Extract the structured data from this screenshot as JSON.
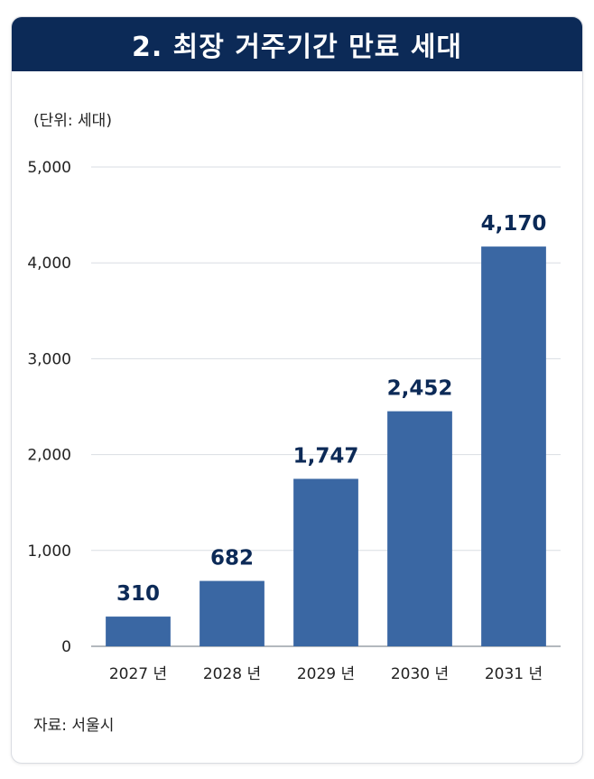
{
  "header": {
    "title": "2. 최장 거주기간 만료 세대"
  },
  "unit_label": "(단위: 세대)",
  "source_label": "자료: 서울시",
  "colors": {
    "bar": "#3a67a3",
    "title_bg": "#0c2a57",
    "label": "#0c2a57"
  },
  "chart_data": {
    "type": "bar",
    "title": "2. 최장 거주기간 만료 세대",
    "xlabel": "",
    "ylabel": "(단위: 세대)",
    "categories": [
      "2027 년",
      "2028 년",
      "2029 년",
      "2030 년",
      "2031 년"
    ],
    "values": [
      310,
      682,
      1747,
      2452,
      4170
    ],
    "value_labels": [
      "310",
      "682",
      "1,747",
      "2,452",
      "4,170"
    ],
    "y_ticks": [
      0,
      1000,
      2000,
      3000,
      4000,
      5000
    ],
    "y_tick_labels": [
      "0",
      "1,000",
      "2,000",
      "3,000",
      "4,000",
      "5,000"
    ],
    "ylim": [
      0,
      5000
    ],
    "grid": true
  }
}
